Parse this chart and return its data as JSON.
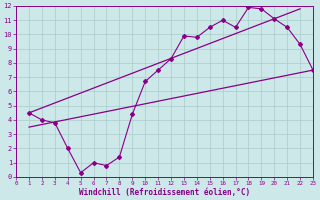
{
  "xlabel": "Windchill (Refroidissement éolien,°C)",
  "xlim": [
    0,
    23
  ],
  "ylim": [
    0,
    12
  ],
  "xticks": [
    0,
    1,
    2,
    3,
    4,
    5,
    6,
    7,
    8,
    9,
    10,
    11,
    12,
    13,
    14,
    15,
    16,
    17,
    18,
    19,
    20,
    21,
    22,
    23
  ],
  "yticks": [
    0,
    1,
    2,
    3,
    4,
    5,
    6,
    7,
    8,
    9,
    10,
    11,
    12
  ],
  "bg_color": "#cde8e8",
  "line_color": "#880088",
  "line1_x": [
    1,
    2,
    3,
    4,
    5,
    6,
    7,
    8,
    9,
    10,
    11,
    12,
    13,
    14,
    15,
    16,
    17,
    18,
    19,
    20,
    21,
    22,
    23
  ],
  "line1_y": [
    4.5,
    4.0,
    3.8,
    2.0,
    0.3,
    1.0,
    0.8,
    1.4,
    4.4,
    6.7,
    7.5,
    8.3,
    9.9,
    9.8,
    10.5,
    11.0,
    10.5,
    11.9,
    11.8,
    11.1,
    10.5,
    9.3,
    7.5
  ],
  "line2_x": [
    1,
    22
  ],
  "line2_y": [
    4.5,
    11.8
  ],
  "line3_x": [
    1,
    23
  ],
  "line3_y": [
    3.5,
    7.5
  ],
  "grid_color": "#aacccc",
  "xlabel_fontsize": 5.5,
  "tick_fontsize_x": 4.2,
  "tick_fontsize_y": 5.0
}
